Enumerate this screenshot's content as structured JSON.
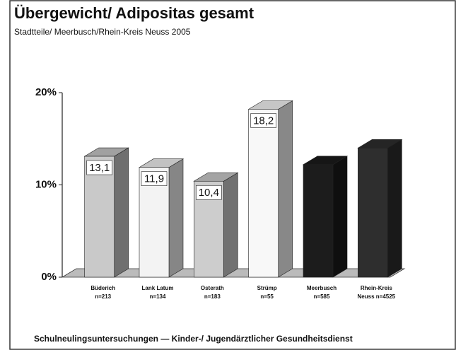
{
  "chart_data": {
    "type": "bar3d",
    "title": "Übergewicht/ Adipositas gesamt",
    "subtitle": "Stadtteile/ Meerbusch/Rhein-Kreis Neuss   2005",
    "footer": "Schulneulingsuntersuchungen  —  Kinder-/ Jugendärztlicher Gesundheitsdienst",
    "categories": [
      [
        "Büderich",
        "n=213"
      ],
      [
        "Lank Latum",
        "n=134"
      ],
      [
        "Osterath",
        "n=183"
      ],
      [
        "Strümp",
        "n=55"
      ],
      [
        "Meerbusch",
        "n=585"
      ],
      [
        "Rhein-Kreis",
        "Neuss n=4525"
      ]
    ],
    "values": [
      13.1,
      11.9,
      10.4,
      18.2,
      12.2,
      14.0
    ],
    "value_labels": [
      "13,1",
      "11,9",
      "10,4",
      "18,2",
      null,
      null
    ],
    "colors": [
      "#c9c9c9",
      "#f3f3f3",
      "#cdcdcd",
      "#f8f8f8",
      "#1c1c1c",
      "#2e2e2e"
    ],
    "ylim": [
      0,
      20
    ],
    "yticks": [
      {
        "value": 0,
        "label": "0%"
      },
      {
        "value": 10,
        "label": "10%"
      },
      {
        "value": 20,
        "label": "20%"
      }
    ]
  }
}
